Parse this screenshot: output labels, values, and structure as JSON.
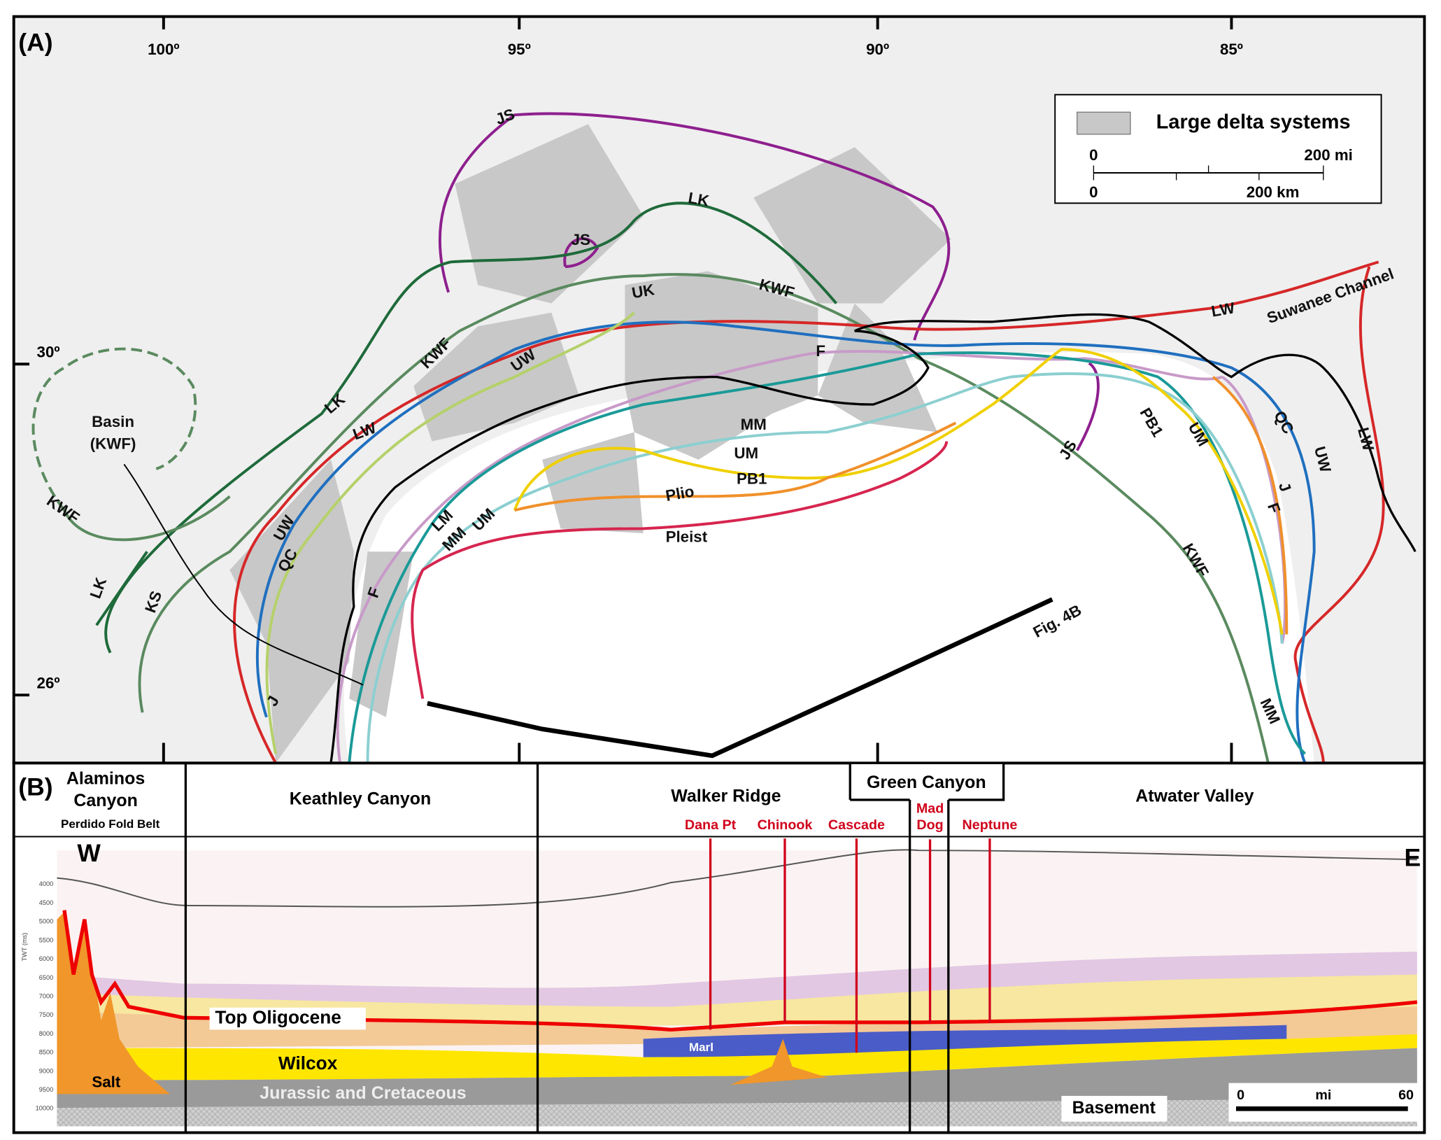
{
  "panel_a": {
    "label": "(A)",
    "longitudes": [
      "100º",
      "95º",
      "90º",
      "85º"
    ],
    "latitudes": [
      "30º",
      "26º"
    ],
    "legend": {
      "swatch_label": "Large delta systems",
      "scale_mi": [
        "0",
        "200 mi"
      ],
      "scale_km": [
        "0",
        "200 km"
      ]
    },
    "basin_label": [
      "Basin",
      "(KWF)"
    ],
    "section_label": "Fig. 4B",
    "line_labels": [
      "JS",
      "JS",
      "LK",
      "UK",
      "KWF",
      "LW",
      "LK",
      "KWF",
      "UW",
      "F",
      "MM",
      "UM",
      "PB1",
      "Plio",
      "Pleist",
      "LM",
      "MM",
      "UM",
      "UW",
      "QC",
      "F",
      "J",
      "LK",
      "KS",
      "KWF",
      "JS",
      "PB1",
      "UM",
      "QC",
      "UW",
      "J",
      "F",
      "KWF",
      "MM",
      "LW",
      "Suwanee Channel",
      "LW"
    ]
  },
  "panel_b": {
    "label": "(B)",
    "regions": [
      {
        "lines": [
          "Alaminos",
          "Canyon"
        ]
      },
      {
        "lines": [
          "Keathley Canyon"
        ]
      },
      {
        "lines": [
          "Walker Ridge"
        ]
      },
      {
        "lines": [
          "Green Canyon"
        ]
      },
      {
        "lines": [
          "Atwater Valley"
        ]
      }
    ],
    "subregion": "Perdido Fold Belt",
    "wells": [
      {
        "lines": [
          "Dana Pt"
        ]
      },
      {
        "lines": [
          "Chinook"
        ]
      },
      {
        "lines": [
          "Cascade"
        ]
      },
      {
        "lines": [
          "Mad",
          "Dog"
        ]
      },
      {
        "lines": [
          "Neptune"
        ]
      }
    ],
    "west": "W",
    "east": "E",
    "units": {
      "top_oligocene": "Top  Oligocene",
      "marl": "Marl",
      "wilcox": "Wilcox",
      "salt": "Salt",
      "jurassic_cretaceous": "Jurassic and Cretaceous",
      "basement": "Basement"
    },
    "scale": [
      "0",
      "mi",
      "60"
    ],
    "axis_title": "TWT (ms)",
    "twt_ticks": [
      "4000",
      "4500",
      "5000",
      "5500",
      "6000",
      "6500",
      "7000",
      "7500",
      "8000",
      "8500",
      "9000",
      "9500",
      "10000"
    ]
  }
}
